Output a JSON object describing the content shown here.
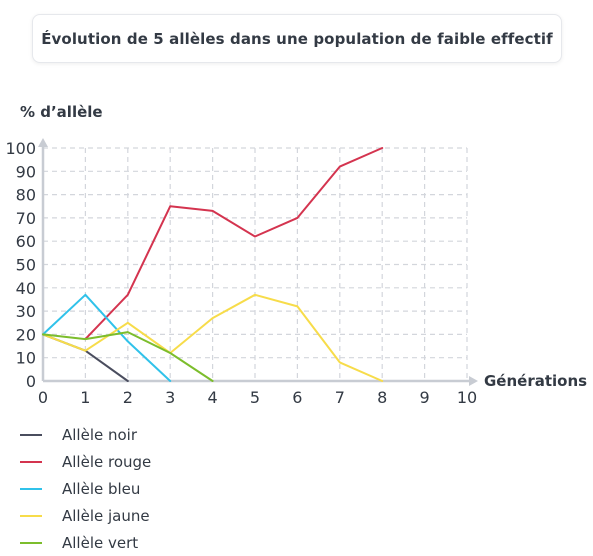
{
  "title": "Évolution de 5 allèles dans une population de faible effectif",
  "chart_data": {
    "type": "line",
    "title": "",
    "xlabel": "Générations",
    "ylabel": "% d’allèle",
    "xlim": [
      0,
      10
    ],
    "ylim": [
      0,
      100
    ],
    "x_ticks": [
      0,
      1,
      2,
      3,
      4,
      5,
      6,
      7,
      8,
      9,
      10
    ],
    "y_ticks": [
      0,
      10,
      20,
      30,
      40,
      50,
      60,
      70,
      80,
      90,
      100
    ],
    "grid": true,
    "legend_position": "bottom-left",
    "series": [
      {
        "name": "Allèle noir",
        "color": "#4a4d5e",
        "points": [
          [
            0,
            20
          ],
          [
            1,
            13
          ],
          [
            2,
            0
          ]
        ]
      },
      {
        "name": "Allèle rouge",
        "color": "#d4344f",
        "points": [
          [
            1,
            18
          ],
          [
            2,
            37
          ],
          [
            3,
            75
          ],
          [
            4,
            73
          ],
          [
            5,
            62
          ],
          [
            6,
            70
          ],
          [
            7,
            92
          ],
          [
            8,
            100
          ]
        ]
      },
      {
        "name": "Allèle bleu",
        "color": "#30c2ea",
        "points": [
          [
            0,
            20
          ],
          [
            1,
            37
          ],
          [
            2,
            17
          ],
          [
            3,
            0
          ]
        ]
      },
      {
        "name": "Allèle jaune",
        "color": "#f7dc4a",
        "points": [
          [
            0,
            20
          ],
          [
            1,
            13
          ],
          [
            2,
            25
          ],
          [
            3,
            12
          ],
          [
            4,
            27
          ],
          [
            5,
            37
          ],
          [
            6,
            32
          ],
          [
            7,
            8
          ],
          [
            8,
            0
          ]
        ]
      },
      {
        "name": "Allèle vert",
        "color": "#7cbd2c",
        "points": [
          [
            0,
            20
          ],
          [
            1,
            18
          ],
          [
            2,
            21
          ],
          [
            3,
            12
          ],
          [
            4,
            0
          ]
        ]
      }
    ]
  }
}
